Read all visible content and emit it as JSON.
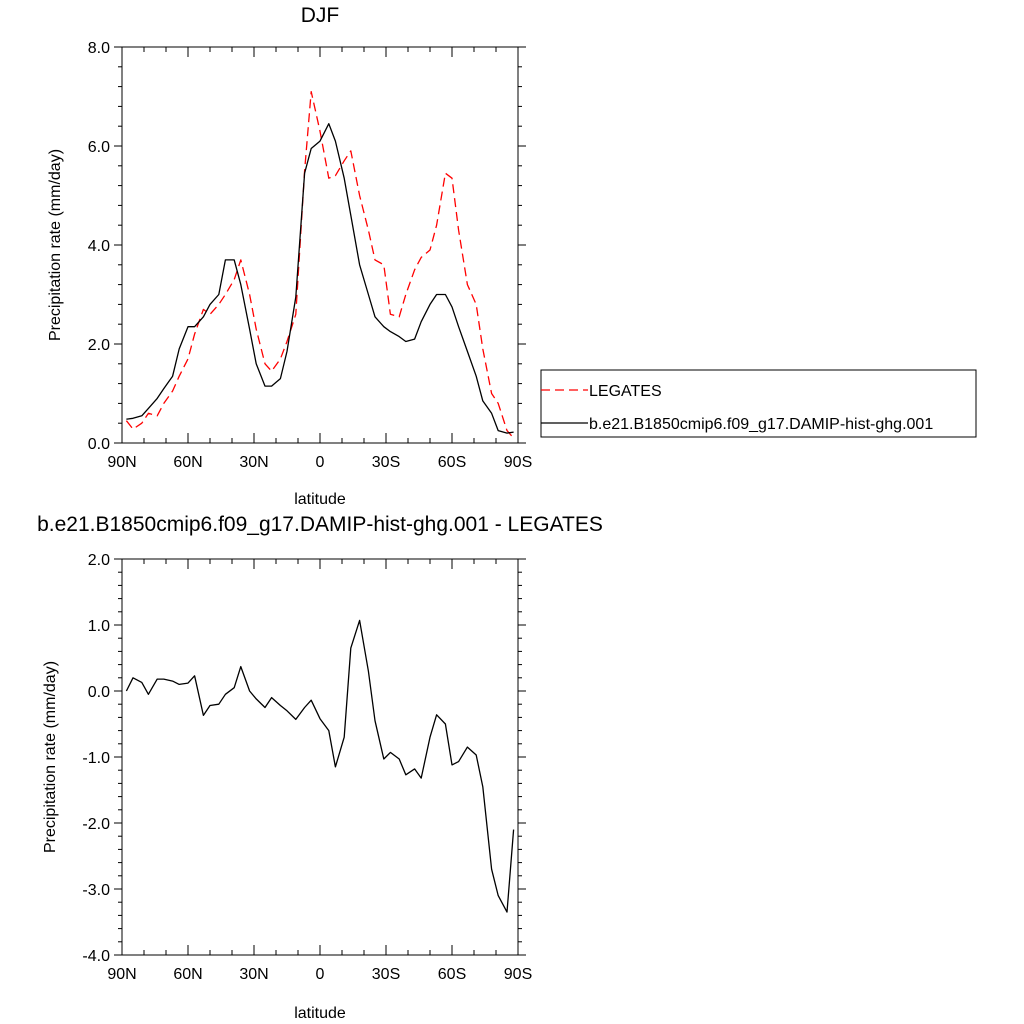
{
  "chart_data": [
    {
      "type": "line",
      "title": "DJF",
      "xlabel": "latitude",
      "ylabel": "Precipitation rate (mm/day)",
      "xlim": [
        90,
        -90
      ],
      "ylim": [
        0,
        8
      ],
      "xticks": [
        90,
        60,
        30,
        0,
        -30,
        -60,
        -90
      ],
      "xtick_labels": [
        "90N",
        "60N",
        "30N",
        "0",
        "30S",
        "60S",
        "90S"
      ],
      "yticks": [
        0,
        2,
        4,
        6,
        8
      ],
      "ytick_labels": [
        "0.0",
        "2.0",
        "4.0",
        "6.0",
        "8.0"
      ],
      "legend_position": "right",
      "series": [
        {
          "name": "LEGATES",
          "color": "#ff0000",
          "style": "dashed",
          "x": [
            88,
            85,
            81,
            78,
            74,
            71,
            67,
            64,
            60,
            57,
            53,
            50,
            46,
            43,
            39,
            36,
            32,
            29,
            25,
            22,
            18,
            15,
            11,
            7,
            4,
            0,
            -4,
            -7,
            -11,
            -14,
            -18,
            -22,
            -25,
            -29,
            -32,
            -36,
            -39,
            -43,
            -46,
            -50,
            -53,
            -57,
            -60,
            -63,
            -67,
            -71,
            -74,
            -78,
            -81,
            -85,
            -88
          ],
          "y": [
            0.45,
            0.28,
            0.4,
            0.6,
            0.55,
            0.8,
            1.05,
            1.35,
            1.7,
            2.2,
            2.7,
            2.6,
            2.8,
            3.0,
            3.3,
            3.7,
            3.0,
            2.3,
            1.6,
            1.45,
            1.7,
            2.05,
            2.6,
            5.5,
            7.1,
            6.3,
            5.35,
            5.4,
            5.7,
            5.9,
            5.0,
            4.3,
            3.7,
            3.6,
            2.6,
            2.55,
            3.0,
            3.5,
            3.75,
            3.9,
            4.4,
            5.45,
            5.35,
            4.3,
            3.2,
            2.8,
            1.9,
            1.0,
            0.8,
            0.25,
            0.1
          ]
        },
        {
          "name": "b.e21.B1850cmip6.f09_g17.DAMIP-hist-ghg.001",
          "color": "#000000",
          "style": "solid",
          "x": [
            88,
            85,
            81,
            78,
            74,
            71,
            67,
            64,
            60,
            57,
            53,
            50,
            46,
            43,
            39,
            36,
            32,
            29,
            25,
            22,
            18,
            15,
            11,
            7,
            4,
            0,
            -4,
            -7,
            -11,
            -14,
            -18,
            -22,
            -25,
            -29,
            -32,
            -36,
            -39,
            -43,
            -46,
            -50,
            -53,
            -57,
            -60,
            -63,
            -67,
            -71,
            -74,
            -78,
            -81,
            -85,
            -88
          ],
          "y": [
            0.48,
            0.5,
            0.55,
            0.7,
            0.9,
            1.1,
            1.35,
            1.9,
            2.35,
            2.35,
            2.55,
            2.8,
            3.0,
            3.7,
            3.7,
            3.2,
            2.3,
            1.6,
            1.15,
            1.15,
            1.3,
            1.85,
            2.95,
            5.45,
            5.95,
            6.1,
            6.45,
            6.1,
            5.35,
            4.6,
            3.6,
            3.0,
            2.55,
            2.35,
            2.25,
            2.15,
            2.05,
            2.1,
            2.45,
            2.8,
            3.0,
            3.0,
            2.75,
            2.35,
            1.85,
            1.35,
            0.85,
            0.6,
            0.25,
            0.2,
            0.22
          ]
        }
      ]
    },
    {
      "type": "line",
      "title": "b.e21.B1850cmip6.f09_g17.DAMIP-hist-ghg.001 - LEGATES",
      "xlabel": "latitude",
      "ylabel": "Precipitation rate (mm/day)",
      "xlim": [
        90,
        -90
      ],
      "ylim": [
        -4,
        2
      ],
      "xticks": [
        90,
        60,
        30,
        0,
        -30,
        -60,
        -90
      ],
      "xtick_labels": [
        "90N",
        "60N",
        "30N",
        "0",
        "30S",
        "60S",
        "90S"
      ],
      "yticks": [
        -4,
        -3,
        -2,
        -1,
        0,
        1,
        2
      ],
      "ytick_labels": [
        "-4.0",
        "-3.0",
        "-2.0",
        "-1.0",
        "0.0",
        "1.0",
        "2.0"
      ],
      "series": [
        {
          "color": "#000000",
          "style": "solid",
          "x": [
            88,
            85,
            81,
            78,
            74,
            71,
            67,
            64,
            60,
            57,
            53,
            50,
            46,
            43,
            39,
            36,
            32,
            29,
            25,
            22,
            18,
            15,
            11,
            7,
            4,
            0,
            -4,
            -7,
            -11,
            -14,
            -18,
            -22,
            -25,
            -29,
            -32,
            -36,
            -39,
            -43,
            -46,
            -50,
            -53,
            -57,
            -60,
            -63,
            -67,
            -71,
            -74,
            -78,
            -81,
            -85,
            -88
          ],
          "y": [
            0.0,
            0.2,
            0.13,
            -0.05,
            0.18,
            0.18,
            0.15,
            0.1,
            0.12,
            0.23,
            -0.37,
            -0.22,
            -0.2,
            -0.05,
            0.05,
            0.37,
            0.0,
            -0.12,
            -0.25,
            -0.1,
            -0.22,
            -0.3,
            -0.43,
            -0.25,
            -0.14,
            -0.42,
            -0.6,
            -1.15,
            -0.7,
            0.65,
            1.07,
            0.3,
            -0.45,
            -1.03,
            -0.93,
            -1.03,
            -1.27,
            -1.18,
            -1.32,
            -0.7,
            -0.36,
            -0.5,
            -1.12,
            -1.07,
            -0.85,
            -0.97,
            -1.45,
            -2.7,
            -3.1,
            -3.35,
            -2.1
          ]
        }
      ]
    }
  ]
}
